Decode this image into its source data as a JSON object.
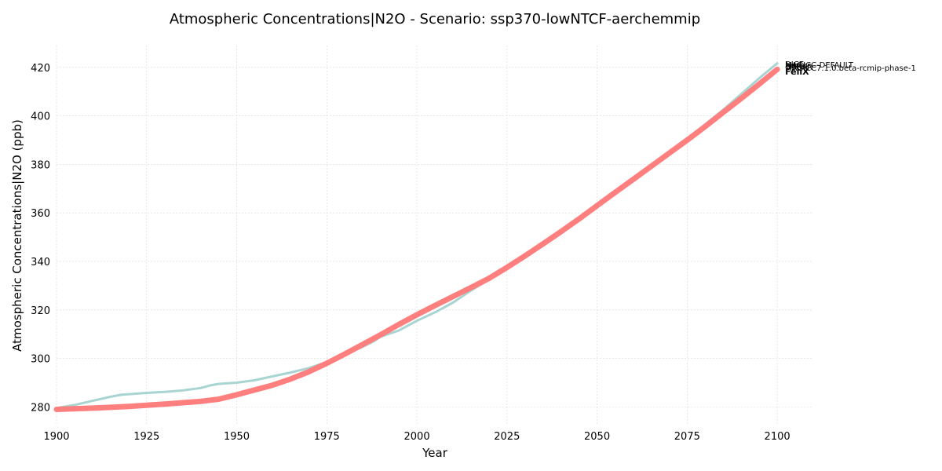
{
  "chart_data": {
    "type": "line",
    "title": "Atmospheric Concentrations|N2O - Scenario: ssp370-lowNTCF-aerchemmip",
    "xlabel": "Year",
    "ylabel": "Atmospheric Concentrations|N2O (ppb)",
    "xlim": [
      1900,
      2110
    ],
    "ylim": [
      273,
      429
    ],
    "xticks": [
      1900,
      1925,
      1950,
      1975,
      2000,
      2025,
      2050,
      2075,
      2100
    ],
    "yticks": [
      280,
      300,
      320,
      340,
      360,
      380,
      400,
      420
    ],
    "grid": true,
    "series": [
      {
        "color": "#a8d5d1",
        "x": [
          1900,
          1905,
          1910,
          1915,
          1918,
          1925,
          1930,
          1935,
          1940,
          1943,
          1945,
          1950,
          1955,
          1960,
          1965,
          1970,
          1975,
          1980,
          1985,
          1988,
          1990,
          1995,
          2000,
          2005,
          2010,
          2015,
          2020,
          2025,
          2030,
          2035,
          2040,
          2045,
          2050,
          2055,
          2060,
          2065,
          2070,
          2075,
          2080,
          2085,
          2090,
          2095,
          2100
        ],
        "values": [
          279.5,
          280.8,
          282.5,
          284.2,
          285.0,
          285.8,
          286.2,
          286.8,
          287.8,
          289.0,
          289.5,
          290.0,
          291.0,
          292.6,
          294.2,
          296.0,
          298.5,
          301.5,
          304.8,
          307.0,
          309.0,
          311.5,
          315.5,
          319.0,
          323.0,
          328.0,
          332.5,
          336.8,
          341.5,
          346.5,
          351.5,
          357.0,
          362.5,
          368.0,
          373.5,
          379.0,
          384.8,
          390.5,
          396.5,
          402.5,
          409.0,
          415.5,
          421.7
        ]
      },
      {
        "color": "#ff7f7f",
        "x": [
          1900,
          1910,
          1920,
          1930,
          1940,
          1945,
          1950,
          1955,
          1960,
          1965,
          1970,
          1975,
          1980,
          1985,
          1990,
          1995,
          2000,
          2005,
          2010,
          2015,
          2020,
          2025,
          2030,
          2035,
          2040,
          2045,
          2050,
          2055,
          2060,
          2065,
          2070,
          2075,
          2080,
          2085,
          2090,
          2095,
          2100
        ],
        "values": [
          279.0,
          279.5,
          280.2,
          281.2,
          282.3,
          283.2,
          285.0,
          287.0,
          289.0,
          291.5,
          294.5,
          298.0,
          301.8,
          305.8,
          309.8,
          314.0,
          318.0,
          321.8,
          325.5,
          329.2,
          333.0,
          337.5,
          342.3,
          347.2,
          352.3,
          357.5,
          363.0,
          368.4,
          373.8,
          379.2,
          384.6,
          390.0,
          395.6,
          401.4,
          407.2,
          413.1,
          419.2
        ]
      }
    ],
    "end_labels": [
      {
        "text": "DICE",
        "y": 421.5,
        "bold": false
      },
      {
        "text": "MAGICC-DEFAULT",
        "y": 421.3,
        "bold": false
      },
      {
        "text": "hector",
        "y": 421.1,
        "bold": false
      },
      {
        "text": "FaIR",
        "y": 420.7,
        "bold": false
      },
      {
        "text": "OSCAR",
        "y": 420.3,
        "bold": false
      },
      {
        "text": "MAGICC7.1.0.beta-rcmip-phase-1",
        "y": 419.9,
        "bold": false
      },
      {
        "text": "FeliX",
        "y": 418.4,
        "bold": true
      }
    ]
  }
}
